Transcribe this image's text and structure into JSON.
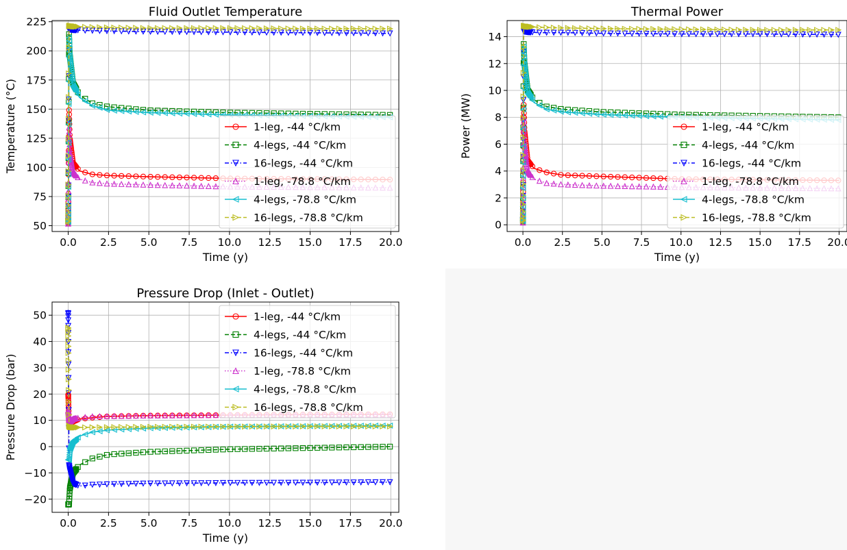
{
  "legend_entries": [
    "1-leg, -44 °C/km",
    "4-legs, -44 °C/km",
    "16-legs, -44 °C/km",
    "1-leg, -78.8 °C/km",
    "4-legs, -78.8 °C/km",
    "16-legs, -78.8 °C/km"
  ],
  "chart_data": [
    {
      "type": "line",
      "title": "Fluid Outlet Temperature",
      "xlabel": "Time (y)",
      "ylabel": "Temperature (°C)",
      "xlim": [
        -1,
        20.5
      ],
      "ylim": [
        45,
        226
      ],
      "xticks": [
        "0.0",
        "2.5",
        "5.0",
        "7.5",
        "10.0",
        "12.5",
        "15.0",
        "17.5",
        "20.0"
      ],
      "yticks": [
        "50",
        "75",
        "100",
        "125",
        "150",
        "175",
        "200",
        "225"
      ],
      "grid": true,
      "legend": "lower-right",
      "series": [
        {
          "name": "1-leg, -44 °C/km",
          "color": "#ff0000",
          "marker": "circle",
          "dash": "solid",
          "x": [
            0,
            0.05,
            0.1,
            0.3,
            0.7,
            1.5,
            2.5,
            5,
            10,
            15,
            20
          ],
          "y": [
            50,
            150,
            125,
            104,
            97,
            94,
            93,
            92,
            90.5,
            90,
            89.5
          ]
        },
        {
          "name": "4-legs, -44 °C/km",
          "color": "#008000",
          "marker": "square",
          "dash": "dashed",
          "x": [
            0,
            0.05,
            0.1,
            0.3,
            0.7,
            1.5,
            2.5,
            5,
            10,
            15,
            20
          ],
          "y": [
            50,
            215,
            196,
            172,
            162,
            155,
            152,
            149,
            147,
            146,
            145
          ]
        },
        {
          "name": "16-legs, -44 °C/km",
          "color": "#0000ff",
          "marker": "triangle-down",
          "dash": "dashdot",
          "x": [
            0,
            0.05,
            0.1,
            0.3,
            1,
            2.5,
            5,
            10,
            15,
            20
          ],
          "y": [
            50,
            218,
            218.5,
            218,
            217.5,
            217,
            216.5,
            216,
            215.5,
            215
          ]
        },
        {
          "name": "1-leg, -78.8 °C/km",
          "color": "#cc33cc",
          "marker": "triangle-up",
          "dash": "dotted",
          "x": [
            0,
            0.05,
            0.1,
            0.3,
            0.7,
            1.5,
            2.5,
            5,
            10,
            15,
            20
          ],
          "y": [
            50,
            135,
            113,
            96,
            90,
            87,
            86,
            85,
            83.5,
            83,
            82.5
          ]
        },
        {
          "name": "4-legs, -78.8 °C/km",
          "color": "#17becf",
          "marker": "triangle-left",
          "dash": "solid",
          "x": [
            0,
            0.05,
            0.1,
            0.3,
            0.7,
            1.5,
            2.5,
            5,
            10,
            15,
            20
          ],
          "y": [
            50,
            212,
            194,
            170,
            160,
            153,
            149,
            147,
            145,
            144,
            143
          ]
        },
        {
          "name": "16-legs, -78.8 °C/km",
          "color": "#bcbd22",
          "marker": "triangle-right",
          "dash": "dashed",
          "x": [
            0,
            0.05,
            0.1,
            0.3,
            1,
            2.5,
            5,
            10,
            15,
            20
          ],
          "y": [
            50,
            221,
            221.5,
            221,
            220.5,
            220,
            219.5,
            219.5,
            219,
            219
          ]
        }
      ]
    },
    {
      "type": "line",
      "title": "Thermal Power",
      "xlabel": "Time (y)",
      "ylabel": "Power (MW)",
      "xlim": [
        -1,
        20.5
      ],
      "ylim": [
        -0.5,
        15.2
      ],
      "xticks": [
        "0.0",
        "2.5",
        "5.0",
        "7.5",
        "10.0",
        "12.5",
        "15.0",
        "17.5",
        "20.0"
      ],
      "yticks": [
        "0",
        "2",
        "4",
        "6",
        "8",
        "10",
        "12",
        "14"
      ],
      "grid": true,
      "legend": "lower-right",
      "series": [
        {
          "name": "1-leg, -44 °C/km",
          "color": "#ff0000",
          "marker": "circle",
          "dash": "solid",
          "x": [
            0,
            0.05,
            0.1,
            0.3,
            0.7,
            1.5,
            2.5,
            5,
            10,
            15,
            20
          ],
          "y": [
            0,
            9,
            7,
            4.8,
            4.2,
            3.9,
            3.7,
            3.6,
            3.4,
            3.35,
            3.3
          ]
        },
        {
          "name": "4-legs, -44 °C/km",
          "color": "#008000",
          "marker": "square",
          "dash": "dashed",
          "x": [
            0,
            0.05,
            0.1,
            0.3,
            0.7,
            1.5,
            2.5,
            5,
            10,
            15,
            20
          ],
          "y": [
            0,
            13.5,
            12,
            10,
            9.3,
            8.8,
            8.6,
            8.4,
            8.2,
            8.1,
            8.0
          ]
        },
        {
          "name": "16-legs, -44 °C/km",
          "color": "#0000ff",
          "marker": "triangle-down",
          "dash": "dashdot",
          "x": [
            0,
            0.05,
            0.1,
            0.3,
            1,
            2.5,
            5,
            10,
            15,
            20
          ],
          "y": [
            0,
            14.4,
            14.4,
            14.35,
            14.3,
            14.3,
            14.25,
            14.2,
            14.2,
            14.15
          ]
        },
        {
          "name": "1-leg, -78.8 °C/km",
          "color": "#cc33cc",
          "marker": "triangle-up",
          "dash": "dotted",
          "x": [
            0,
            0.05,
            0.1,
            0.3,
            0.7,
            1.5,
            2.5,
            5,
            10,
            15,
            20
          ],
          "y": [
            0,
            8,
            6,
            4.0,
            3.4,
            3.1,
            3.0,
            2.9,
            2.8,
            2.75,
            2.7
          ]
        },
        {
          "name": "4-legs, -78.8 °C/km",
          "color": "#17becf",
          "marker": "triangle-left",
          "dash": "solid",
          "x": [
            0,
            0.05,
            0.1,
            0.3,
            0.7,
            1.5,
            2.5,
            5,
            10,
            15,
            20
          ],
          "y": [
            0,
            13.3,
            11.8,
            9.8,
            9.1,
            8.6,
            8.4,
            8.2,
            8.0,
            7.9,
            7.8
          ]
        },
        {
          "name": "16-legs, -78.8 °C/km",
          "color": "#bcbd22",
          "marker": "triangle-right",
          "dash": "dashed",
          "x": [
            0,
            0.05,
            0.1,
            0.3,
            1,
            2.5,
            5,
            10,
            15,
            20
          ],
          "y": [
            0,
            14.8,
            14.8,
            14.75,
            14.7,
            14.65,
            14.6,
            14.55,
            14.5,
            14.5
          ]
        }
      ]
    },
    {
      "type": "line",
      "title": "Pressure Drop (Inlet - Outlet)",
      "xlabel": "Time (y)",
      "ylabel": "Pressure Drop (bar)",
      "xlim": [
        -1,
        20.5
      ],
      "ylim": [
        -25,
        55
      ],
      "xticks": [
        "0.0",
        "2.5",
        "5.0",
        "7.5",
        "10.0",
        "12.5",
        "15.0",
        "17.5",
        "20.0"
      ],
      "yticks": [
        "−20",
        "−10",
        "0",
        "10",
        "20",
        "30",
        "40",
        "50"
      ],
      "grid": true,
      "legend": "upper-right",
      "series": [
        {
          "name": "1-leg, -44 °C/km",
          "color": "#ff0000",
          "marker": "circle",
          "dash": "solid",
          "x": [
            0,
            0.05,
            0.1,
            0.3,
            0.7,
            1.5,
            2.5,
            5,
            10,
            15,
            20
          ],
          "y": [
            20,
            8,
            8,
            9.5,
            10.5,
            11,
            11.5,
            11.8,
            12,
            12.2,
            12.3
          ]
        },
        {
          "name": "4-legs, -44 °C/km",
          "color": "#008000",
          "marker": "square",
          "dash": "dashed",
          "x": [
            0,
            0.05,
            0.1,
            0.3,
            0.7,
            1.5,
            2.5,
            5,
            10,
            15,
            20
          ],
          "y": [
            -22,
            -22,
            -16,
            -10,
            -7,
            -4.5,
            -3,
            -2,
            -1,
            -0.5,
            0
          ]
        },
        {
          "name": "16-legs, -44 °C/km",
          "color": "#0000ff",
          "marker": "triangle-down",
          "dash": "dashdot",
          "x": [
            0,
            0.05,
            0.1,
            0.3,
            0.7,
            1.5,
            2.5,
            5,
            10,
            15,
            20
          ],
          "y": [
            52,
            -7,
            -9,
            -14,
            -15,
            -14.5,
            -14.3,
            -14,
            -13.8,
            -13.7,
            -13.5
          ]
        },
        {
          "name": "1-leg, -78.8 °C/km",
          "color": "#cc33cc",
          "marker": "triangle-up",
          "dash": "dotted",
          "x": [
            0,
            0.05,
            0.1,
            0.3,
            0.7,
            1.5,
            2.5,
            5,
            10,
            15,
            20
          ],
          "y": [
            14,
            9,
            9.5,
            10.5,
            11,
            11.5,
            11.6,
            11.8,
            12,
            12.1,
            12.2
          ]
        },
        {
          "name": "4-legs, -78.8 °C/km",
          "color": "#17becf",
          "marker": "triangle-left",
          "dash": "solid",
          "x": [
            0,
            0.05,
            0.1,
            0.3,
            0.7,
            1.5,
            2.5,
            5,
            10,
            15,
            20
          ],
          "y": [
            -5,
            -5,
            -1,
            2,
            4,
            5.5,
            6.3,
            7,
            7.6,
            7.8,
            8
          ]
        },
        {
          "name": "16-legs, -78.8 °C/km",
          "color": "#bcbd22",
          "marker": "triangle-right",
          "dash": "dashed",
          "x": [
            0,
            0.05,
            0.1,
            0.3,
            1,
            2.5,
            5,
            10,
            15,
            20
          ],
          "y": [
            46,
            8,
            7.5,
            7.3,
            7.3,
            7.4,
            7.5,
            7.6,
            7.7,
            7.7
          ]
        }
      ]
    }
  ]
}
